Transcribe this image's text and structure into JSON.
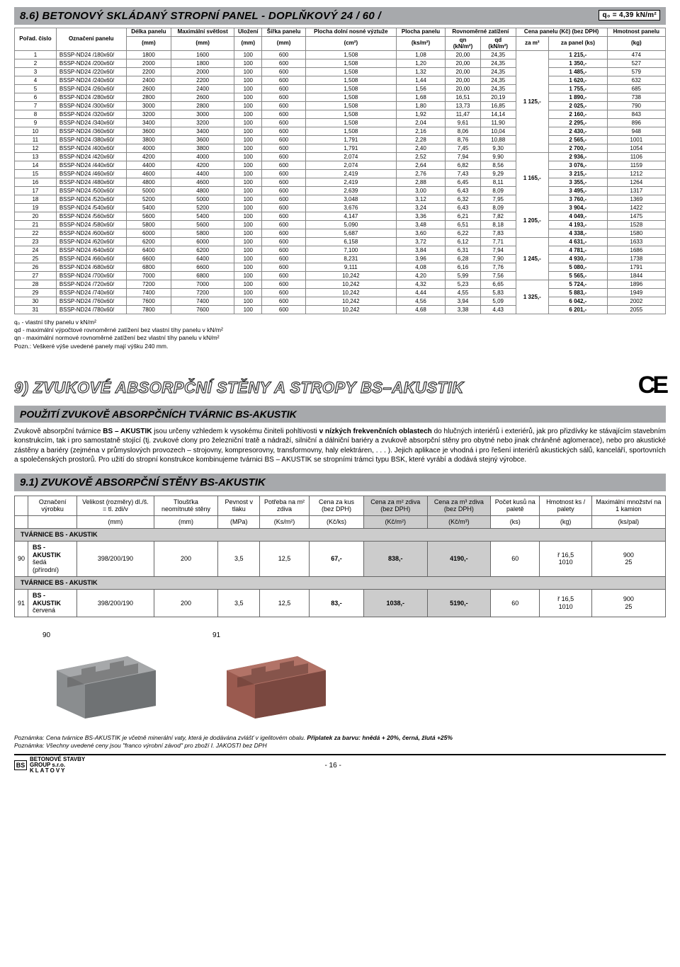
{
  "section86": {
    "title": "8.6) BETONOVÝ SKLÁDANÝ STROPNÍ PANEL - DOPLŇKOVÝ 24 / 60 /",
    "q0": "q₀ = 4,39 kN/m²",
    "headers_row1": [
      "Pořad. číslo",
      "Označení panelu",
      "Délka panelu",
      "Maximální světlost",
      "Uložení",
      "Šířka panelu",
      "Plocha dolní nosné výztuže",
      "Plocha panelu",
      "Rovnoměrné zatížení",
      "Cena panelu (Kč) (bez DPH)",
      "Hmotnost panelu"
    ],
    "headers_sub_zat": [
      "qn",
      "qd"
    ],
    "headers_sub_cena": [
      "za m²",
      "za panel (ks)"
    ],
    "units": [
      "(mm)",
      "(mm)",
      "(mm)",
      "(mm)",
      "(cm²)",
      "(ks/m²)",
      "(kN/m²)",
      "(kN/m²)",
      "",
      "",
      "(kg)"
    ],
    "span_prices": [
      "1 125,-",
      "1 165,-",
      "1 205,-",
      "1 245,-",
      "1 325,-"
    ],
    "rows": [
      [
        "1",
        "BSSP-ND24 /180x60/",
        "1800",
        "1600",
        "100",
        "600",
        "1,508",
        "1,08",
        "20,00",
        "24,35",
        "1 215,-",
        "474"
      ],
      [
        "2",
        "BSSP-ND24 /200x60/",
        "2000",
        "1800",
        "100",
        "600",
        "1,508",
        "1,20",
        "20,00",
        "24,35",
        "1 350,-",
        "527"
      ],
      [
        "3",
        "BSSP-ND24 /220x60/",
        "2200",
        "2000",
        "100",
        "600",
        "1,508",
        "1,32",
        "20,00",
        "24,35",
        "1 485,-",
        "579"
      ],
      [
        "4",
        "BSSP-ND24 /240x60/",
        "2400",
        "2200",
        "100",
        "600",
        "1,508",
        "1,44",
        "20,00",
        "24,35",
        "1 620,-",
        "632"
      ],
      [
        "5",
        "BSSP-ND24 /260x60/",
        "2600",
        "2400",
        "100",
        "600",
        "1,508",
        "1,56",
        "20,00",
        "24,35",
        "1 755,-",
        "685"
      ],
      [
        "6",
        "BSSP-ND24 /280x60/",
        "2800",
        "2600",
        "100",
        "600",
        "1,508",
        "1,68",
        "16,51",
        "20,19",
        "1 890,-",
        "738"
      ],
      [
        "7",
        "BSSP-ND24 /300x60/",
        "3000",
        "2800",
        "100",
        "600",
        "1,508",
        "1,80",
        "13,73",
        "16,85",
        "2 025,-",
        "790"
      ],
      [
        "8",
        "BSSP-ND24 /320x60/",
        "3200",
        "3000",
        "100",
        "600",
        "1,508",
        "1,92",
        "11,47",
        "14,14",
        "2 160,-",
        "843"
      ],
      [
        "9",
        "BSSP-ND24 /340x60/",
        "3400",
        "3200",
        "100",
        "600",
        "1,508",
        "2,04",
        "9,61",
        "11,90",
        "2 295,-",
        "896"
      ],
      [
        "10",
        "BSSP-ND24 /360x60/",
        "3600",
        "3400",
        "100",
        "600",
        "1,508",
        "2,16",
        "8,06",
        "10,04",
        "2 430,-",
        "948"
      ],
      [
        "11",
        "BSSP-ND24 /380x60/",
        "3800",
        "3600",
        "100",
        "600",
        "1,791",
        "2,28",
        "8,76",
        "10,88",
        "2 565,-",
        "1001"
      ],
      [
        "12",
        "BSSP-ND24 /400x60/",
        "4000",
        "3800",
        "100",
        "600",
        "1,791",
        "2,40",
        "7,45",
        "9,30",
        "2 700,-",
        "1054"
      ],
      [
        "13",
        "BSSP-ND24 /420x60/",
        "4200",
        "4000",
        "100",
        "600",
        "2,074",
        "2,52",
        "7,94",
        "9,90",
        "2 936,-",
        "1106"
      ],
      [
        "14",
        "BSSP-ND24 /440x60/",
        "4400",
        "4200",
        "100",
        "600",
        "2,074",
        "2,64",
        "6,82",
        "8,56",
        "3 076,-",
        "1159"
      ],
      [
        "15",
        "BSSP-ND24 /460x60/",
        "4600",
        "4400",
        "100",
        "600",
        "2,419",
        "2,76",
        "7,43",
        "9,29",
        "3 215,-",
        "1212"
      ],
      [
        "16",
        "BSSP-ND24 /480x60/",
        "4800",
        "4600",
        "100",
        "600",
        "2,419",
        "2,88",
        "6,45",
        "8,11",
        "3 355,-",
        "1264"
      ],
      [
        "17",
        "BSSP-ND24 /500x60/",
        "5000",
        "4800",
        "100",
        "600",
        "2,639",
        "3,00",
        "6,43",
        "8,09",
        "3 495,-",
        "1317"
      ],
      [
        "18",
        "BSSP-ND24 /520x60/",
        "5200",
        "5000",
        "100",
        "600",
        "3,048",
        "3,12",
        "6,32",
        "7,95",
        "3 760,-",
        "1369"
      ],
      [
        "19",
        "BSSP-ND24 /540x60/",
        "5400",
        "5200",
        "100",
        "600",
        "3,676",
        "3,24",
        "6,43",
        "8,09",
        "3 904,-",
        "1422"
      ],
      [
        "20",
        "BSSP-ND24 /560x60/",
        "5600",
        "5400",
        "100",
        "600",
        "4,147",
        "3,36",
        "6,21",
        "7,82",
        "4 049,-",
        "1475"
      ],
      [
        "21",
        "BSSP-ND24 /580x60/",
        "5800",
        "5600",
        "100",
        "600",
        "5,090",
        "3,48",
        "6,51",
        "8,18",
        "4 193,-",
        "1528"
      ],
      [
        "22",
        "BSSP-ND24 /600x60/",
        "6000",
        "5800",
        "100",
        "600",
        "5,687",
        "3,60",
        "6,22",
        "7,83",
        "4 338,-",
        "1580"
      ],
      [
        "23",
        "BSSP-ND24 /620x60/",
        "6200",
        "6000",
        "100",
        "600",
        "6,158",
        "3,72",
        "6,12",
        "7,71",
        "4 631,-",
        "1633"
      ],
      [
        "24",
        "BSSP-ND24 /640x60/",
        "6400",
        "6200",
        "100",
        "600",
        "7,100",
        "3,84",
        "6,31",
        "7,94",
        "4 781,-",
        "1686"
      ],
      [
        "25",
        "BSSP-ND24 /660x60/",
        "6600",
        "6400",
        "100",
        "600",
        "8,231",
        "3,96",
        "6,28",
        "7,90",
        "4 930,-",
        "1738"
      ],
      [
        "26",
        "BSSP-ND24 /680x60/",
        "6800",
        "6600",
        "100",
        "600",
        "9,111",
        "4,08",
        "6,16",
        "7,76",
        "5 080,-",
        "1791"
      ],
      [
        "27",
        "BSSP-ND24 /700x60/",
        "7000",
        "6800",
        "100",
        "600",
        "10,242",
        "4,20",
        "5,99",
        "7,56",
        "5 565,-",
        "1844"
      ],
      [
        "28",
        "BSSP-ND24 /720x60/",
        "7200",
        "7000",
        "100",
        "600",
        "10,242",
        "4,32",
        "5,23",
        "6,65",
        "5 724,-",
        "1896"
      ],
      [
        "29",
        "BSSP-ND24 /740x60/",
        "7400",
        "7200",
        "100",
        "600",
        "10,242",
        "4,44",
        "4,55",
        "5,83",
        "5 883,-",
        "1949"
      ],
      [
        "30",
        "BSSP-ND24 /760x60/",
        "7600",
        "7400",
        "100",
        "600",
        "10,242",
        "4,56",
        "3,94",
        "5,09",
        "6 042,-",
        "2002"
      ],
      [
        "31",
        "BSSP-ND24 /780x60/",
        "7800",
        "7600",
        "100",
        "600",
        "10,242",
        "4,68",
        "3,38",
        "4,43",
        "6 201,-",
        "2055"
      ]
    ],
    "footnotes": [
      "q₀ - vlastní tíhy panelu v kN/m²",
      "qd - maximální výpočtové rovnoměrné zatížení bez vlastní tíhy panelu v kN/m²",
      "qn - maximální normové rovnoměrné zatížení bez vlastní tíhy panelu v kN/m²",
      "Pozn.: Veškeré výše uvedené panely mají výšku 240 mm."
    ]
  },
  "section9": {
    "big_title": "9) ZVUKOVÉ ABSORPČNÍ STĚNY A STROPY BS–AKUSTIK",
    "ce": "CE",
    "sub1_title": "POUŽITÍ ZVUKOVĚ ABSORPČNÍCH TVÁRNIC BS-AKUSTIK",
    "body": "Zvukově absorpční tvárnice BS – AKUSTIK jsou určeny vzhledem k vysokému činiteli pohltivosti v nízkých frekvenčních oblastech do hlučných interiérů i exteriérů, jak pro přizdívky ke stávajícím stavebním konstrukcím, tak i pro samostatně stojící (tj. zvukové clony pro železniční tratě a nádraží, silniční a dálniční bariéry a zvukově absorpční stěny pro obytné nebo jinak chráněné aglomerace), nebo pro akustické zástěny a bariéry (zejména v průmyslových provozech – strojovny, kompresorovny, transformovny, haly elektráren, . . . ). Jejich aplikace je vhodná i pro řešení interiérů akustických sálů, kanceláří, sportovních a společenských prostorů. Pro užití do stropní konstrukce kombinujeme tvárnici BS – AKUSTIK se stropními trámci typu BSK, které vyrábí a dodává stejný výrobce.",
    "sub91_title": "9.1) ZVUKOVĚ ABSORPČNÍ STĚNY BS-AKUSTIK"
  },
  "akustik_table": {
    "headers1": [
      "",
      "Označení výrobku",
      "Velikost (rozměry) dl./š. = tl. zdi/v",
      "Tloušťka neomítnuté stěny",
      "Pevnost v tlaku",
      "Potřeba na m² zdiva",
      "Cena za kus (bez DPH)",
      "Cena za m² zdiva (bez DPH)",
      "Cena za m³ zdiva (bez DPH)",
      "Počet kusů na paletě",
      "Hmotnost ks / palety",
      "Maximální množství na 1 kamion"
    ],
    "units": [
      "",
      "",
      "(mm)",
      "(mm)",
      "(MPa)",
      "(Ks/m²)",
      "(Kč/ks)",
      "(Kč/m²)",
      "(Kč/m³)",
      "(ks)",
      "(kg)",
      "(ks/pal)"
    ],
    "group_header": "TVÁRNICE BS - AKUSTIK",
    "rows": [
      {
        "num": "90",
        "name": "BS - AKUSTIK",
        "sub": "šedá (přírodní)",
        "size": "398/200/190",
        "tl": "200",
        "pev": "3,5",
        "pot": "12,5",
        "ckus": "67,-",
        "cm2": "838,-",
        "cm3": "4190,-",
        "pal": "60",
        "hm": "ř 16,5\n1010",
        "max": "900\n25"
      },
      {
        "num": "91",
        "name": "BS - AKUSTIK",
        "sub": "červená",
        "size": "398/200/190",
        "tl": "200",
        "pev": "3,5",
        "pot": "12,5",
        "ckus": "83,-",
        "cm2": "1038,-",
        "cm3": "5190,-",
        "pal": "60",
        "hm": "ř 16,5\n1010",
        "max": "900\n25"
      }
    ]
  },
  "bricks": {
    "num1": "90",
    "num2": "91"
  },
  "notes": {
    "l1": "Poznámka: Cena tvárnice BS-AKUSTIK je včetně minerální vaty, která je dodávána zvlášť v igelitovém obalu. Příplatek za barvu: hnědá + 20%, černá, žlutá +25%",
    "l2": "Poznámka: Všechny uvedené ceny jsou \"franco výrobní závod\" pro zboží I. JAKOSTI bez DPH"
  },
  "footer": {
    "logo1": "BETONOVÉ STAVBY",
    "logo2": "GROUP s.r.o.",
    "logo3": "KLATOVY",
    "page": "- 16 -"
  },
  "colors": {
    "bar": "#a7a9ac",
    "shade": "#cccccc",
    "brick_gray": "#8a8d8f",
    "brick_red": "#9a5a4f"
  }
}
